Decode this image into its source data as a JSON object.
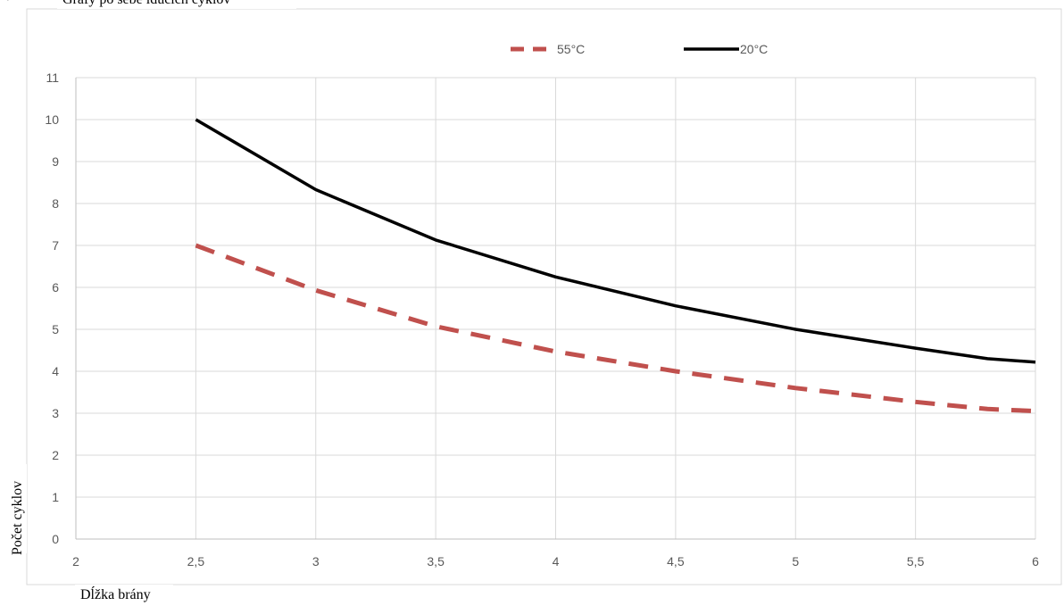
{
  "header": {
    "bullet": "•",
    "caption": "Grafy po sebe idúcich cyklov"
  },
  "chart_data": {
    "type": "line",
    "xlabel": "Dĺžka brány",
    "ylabel": "Počet cyklov",
    "xlim": [
      2,
      6
    ],
    "ylim": [
      0,
      11
    ],
    "x_ticks": [
      2,
      2.5,
      3,
      3.5,
      4,
      4.5,
      5,
      5.5,
      6
    ],
    "x_tick_labels": [
      "2",
      "2,5",
      "3",
      "3,5",
      "4",
      "4,5",
      "5",
      "5,5",
      "6"
    ],
    "y_ticks": [
      0,
      1,
      2,
      3,
      4,
      5,
      6,
      7,
      8,
      9,
      10,
      11
    ],
    "y_tick_labels": [
      "0",
      "1",
      "2",
      "3",
      "4",
      "5",
      "6",
      "7",
      "8",
      "9",
      "10",
      "11"
    ],
    "grid": true,
    "legend_position": "top-center",
    "series": [
      {
        "name": "55°C",
        "color": "#c0504d",
        "style": "dashed",
        "x": [
          2.5,
          3,
          3.5,
          4,
          4.5,
          5,
          5.5,
          5.8,
          6
        ],
        "y": [
          7,
          5.93,
          5.07,
          4.47,
          4.0,
          3.6,
          3.27,
          3.1,
          3.05
        ]
      },
      {
        "name": "20°C",
        "color": "#000000",
        "style": "solid",
        "x": [
          2.5,
          3,
          3.5,
          4,
          4.5,
          5,
          5.5,
          5.8,
          6
        ],
        "y": [
          10,
          8.33,
          7.13,
          6.25,
          5.56,
          5.0,
          4.55,
          4.3,
          4.22
        ]
      }
    ]
  }
}
